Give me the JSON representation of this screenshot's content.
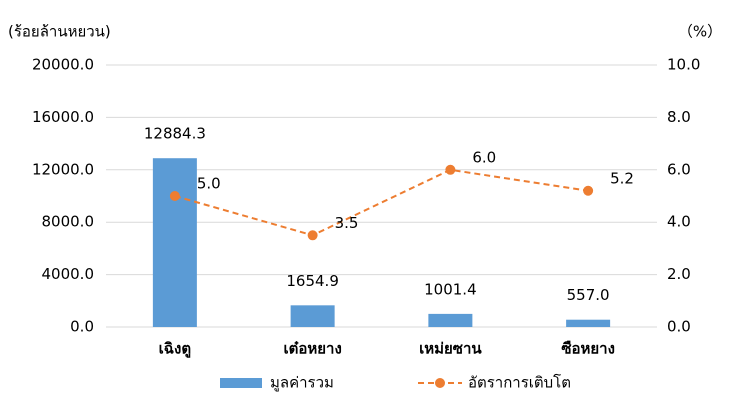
{
  "chart_data": {
    "type": "bar_line",
    "y_label": "(ร้อยล้านหยวน)",
    "y2_label": "（%）",
    "categories": [
      "เฉิงตู",
      "เต๋อหยาง",
      "เหม่ยซาน",
      "ซือหยาง"
    ],
    "series": [
      {
        "name": "มูลค่ารวม",
        "type": "bar",
        "color": "#5b9bd5",
        "values": [
          12884.3,
          1654.9,
          1001.4,
          557.0
        ],
        "value_labels": [
          "12884.3",
          "1654.9",
          "1001.4",
          "557.0"
        ]
      },
      {
        "name": "อัตราการเติบโต",
        "type": "line",
        "axis": "y2",
        "color": "#ed7d31",
        "values": [
          5.0,
          3.5,
          6.0,
          5.2
        ],
        "value_labels": [
          "5.0",
          "3.5",
          "6.0",
          "5.2"
        ]
      }
    ],
    "ylim": [
      0,
      20000
    ],
    "yticks": [
      {
        "value": 0,
        "label": "0.0"
      },
      {
        "value": 4000,
        "label": "4000.0"
      },
      {
        "value": 8000,
        "label": "8000.0"
      },
      {
        "value": 12000,
        "label": "12000.0"
      },
      {
        "value": 16000,
        "label": "16000.0"
      },
      {
        "value": 20000,
        "label": "20000.0"
      }
    ],
    "y2lim": [
      0,
      10
    ],
    "y2ticks": [
      {
        "value": 0,
        "label": "0.0"
      },
      {
        "value": 2,
        "label": "2.0"
      },
      {
        "value": 4,
        "label": "4.0"
      },
      {
        "value": 6,
        "label": "6.0"
      },
      {
        "value": 8,
        "label": "8.0"
      },
      {
        "value": 10,
        "label": "10.0"
      }
    ],
    "grid": true,
    "legend": "bottom"
  }
}
